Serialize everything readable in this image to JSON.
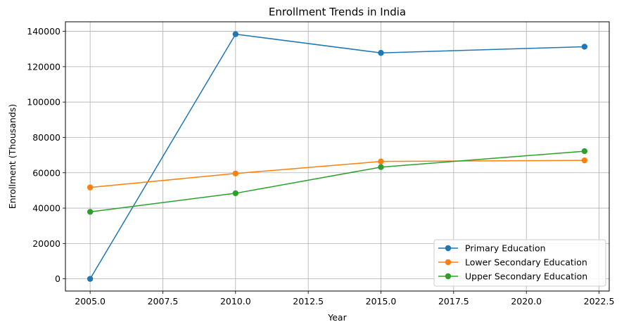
{
  "chart_data": {
    "type": "line",
    "title": "Enrollment Trends in India",
    "xlabel": "Year",
    "ylabel": "Enrollment (Thousands)",
    "x": [
      2005,
      2010,
      2015,
      2022
    ],
    "xlim": [
      2004.15,
      2022.85
    ],
    "ylim": [
      -6900,
      145400
    ],
    "xticks": [
      2005.0,
      2007.5,
      2010.0,
      2012.5,
      2015.0,
      2017.5,
      2020.0,
      2022.5
    ],
    "xtick_labels": [
      "2005.0",
      "2007.5",
      "2010.0",
      "2012.5",
      "2015.0",
      "2017.5",
      "2020.0",
      "2022.5"
    ],
    "yticks": [
      0,
      20000,
      40000,
      60000,
      80000,
      100000,
      120000,
      140000
    ],
    "ytick_labels": [
      "0",
      "20000",
      "40000",
      "60000",
      "80000",
      "100000",
      "120000",
      "140000"
    ],
    "grid": true,
    "legend_position": "bottom-right",
    "series": [
      {
        "name": "Primary Education",
        "color": "#1f77b4",
        "marker": "circle",
        "values": [
          0,
          138400,
          127800,
          131300
        ]
      },
      {
        "name": "Lower Secondary Education",
        "color": "#ff7f0e",
        "marker": "circle",
        "values": [
          51700,
          59600,
          66400,
          67000
        ]
      },
      {
        "name": "Upper Secondary Education",
        "color": "#2ca02c",
        "marker": "circle",
        "values": [
          37900,
          48400,
          63200,
          72200
        ]
      }
    ]
  }
}
